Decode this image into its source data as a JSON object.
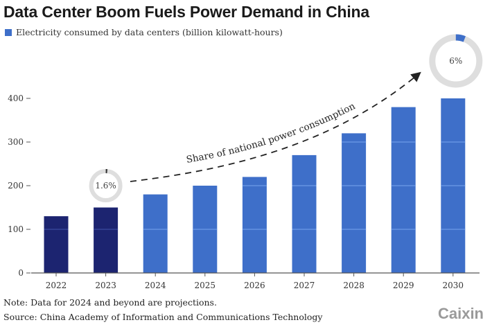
{
  "chart_data": {
    "type": "bar",
    "title": "Data Center Boom Fuels Power Demand in China",
    "legend": "Electricity consumed by data centers (billion kilowatt-hours)",
    "categories": [
      "2022",
      "2023",
      "2024",
      "2025",
      "2026",
      "2027",
      "2028",
      "2029",
      "2030"
    ],
    "values": [
      130,
      150,
      180,
      200,
      220,
      270,
      320,
      380,
      400
    ],
    "projected_from": "2024",
    "ylim": [
      0,
      400
    ],
    "yticks": [
      0,
      100,
      200,
      300,
      400
    ],
    "grid": false,
    "colors": {
      "actual": "#1c2470",
      "projected": "#3e6fc9"
    },
    "annotation": {
      "label": "Share of national power consumption",
      "start": {
        "year": "2023",
        "share": "1.6%",
        "value": 1.6
      },
      "end": {
        "year": "2030",
        "share": "6%",
        "value": 6
      }
    }
  },
  "notes": {
    "note": "Note: Data for 2024 and beyond are projections.",
    "source": "Source: China Academy of Information and Communications Technology"
  },
  "logo": "Caixin"
}
